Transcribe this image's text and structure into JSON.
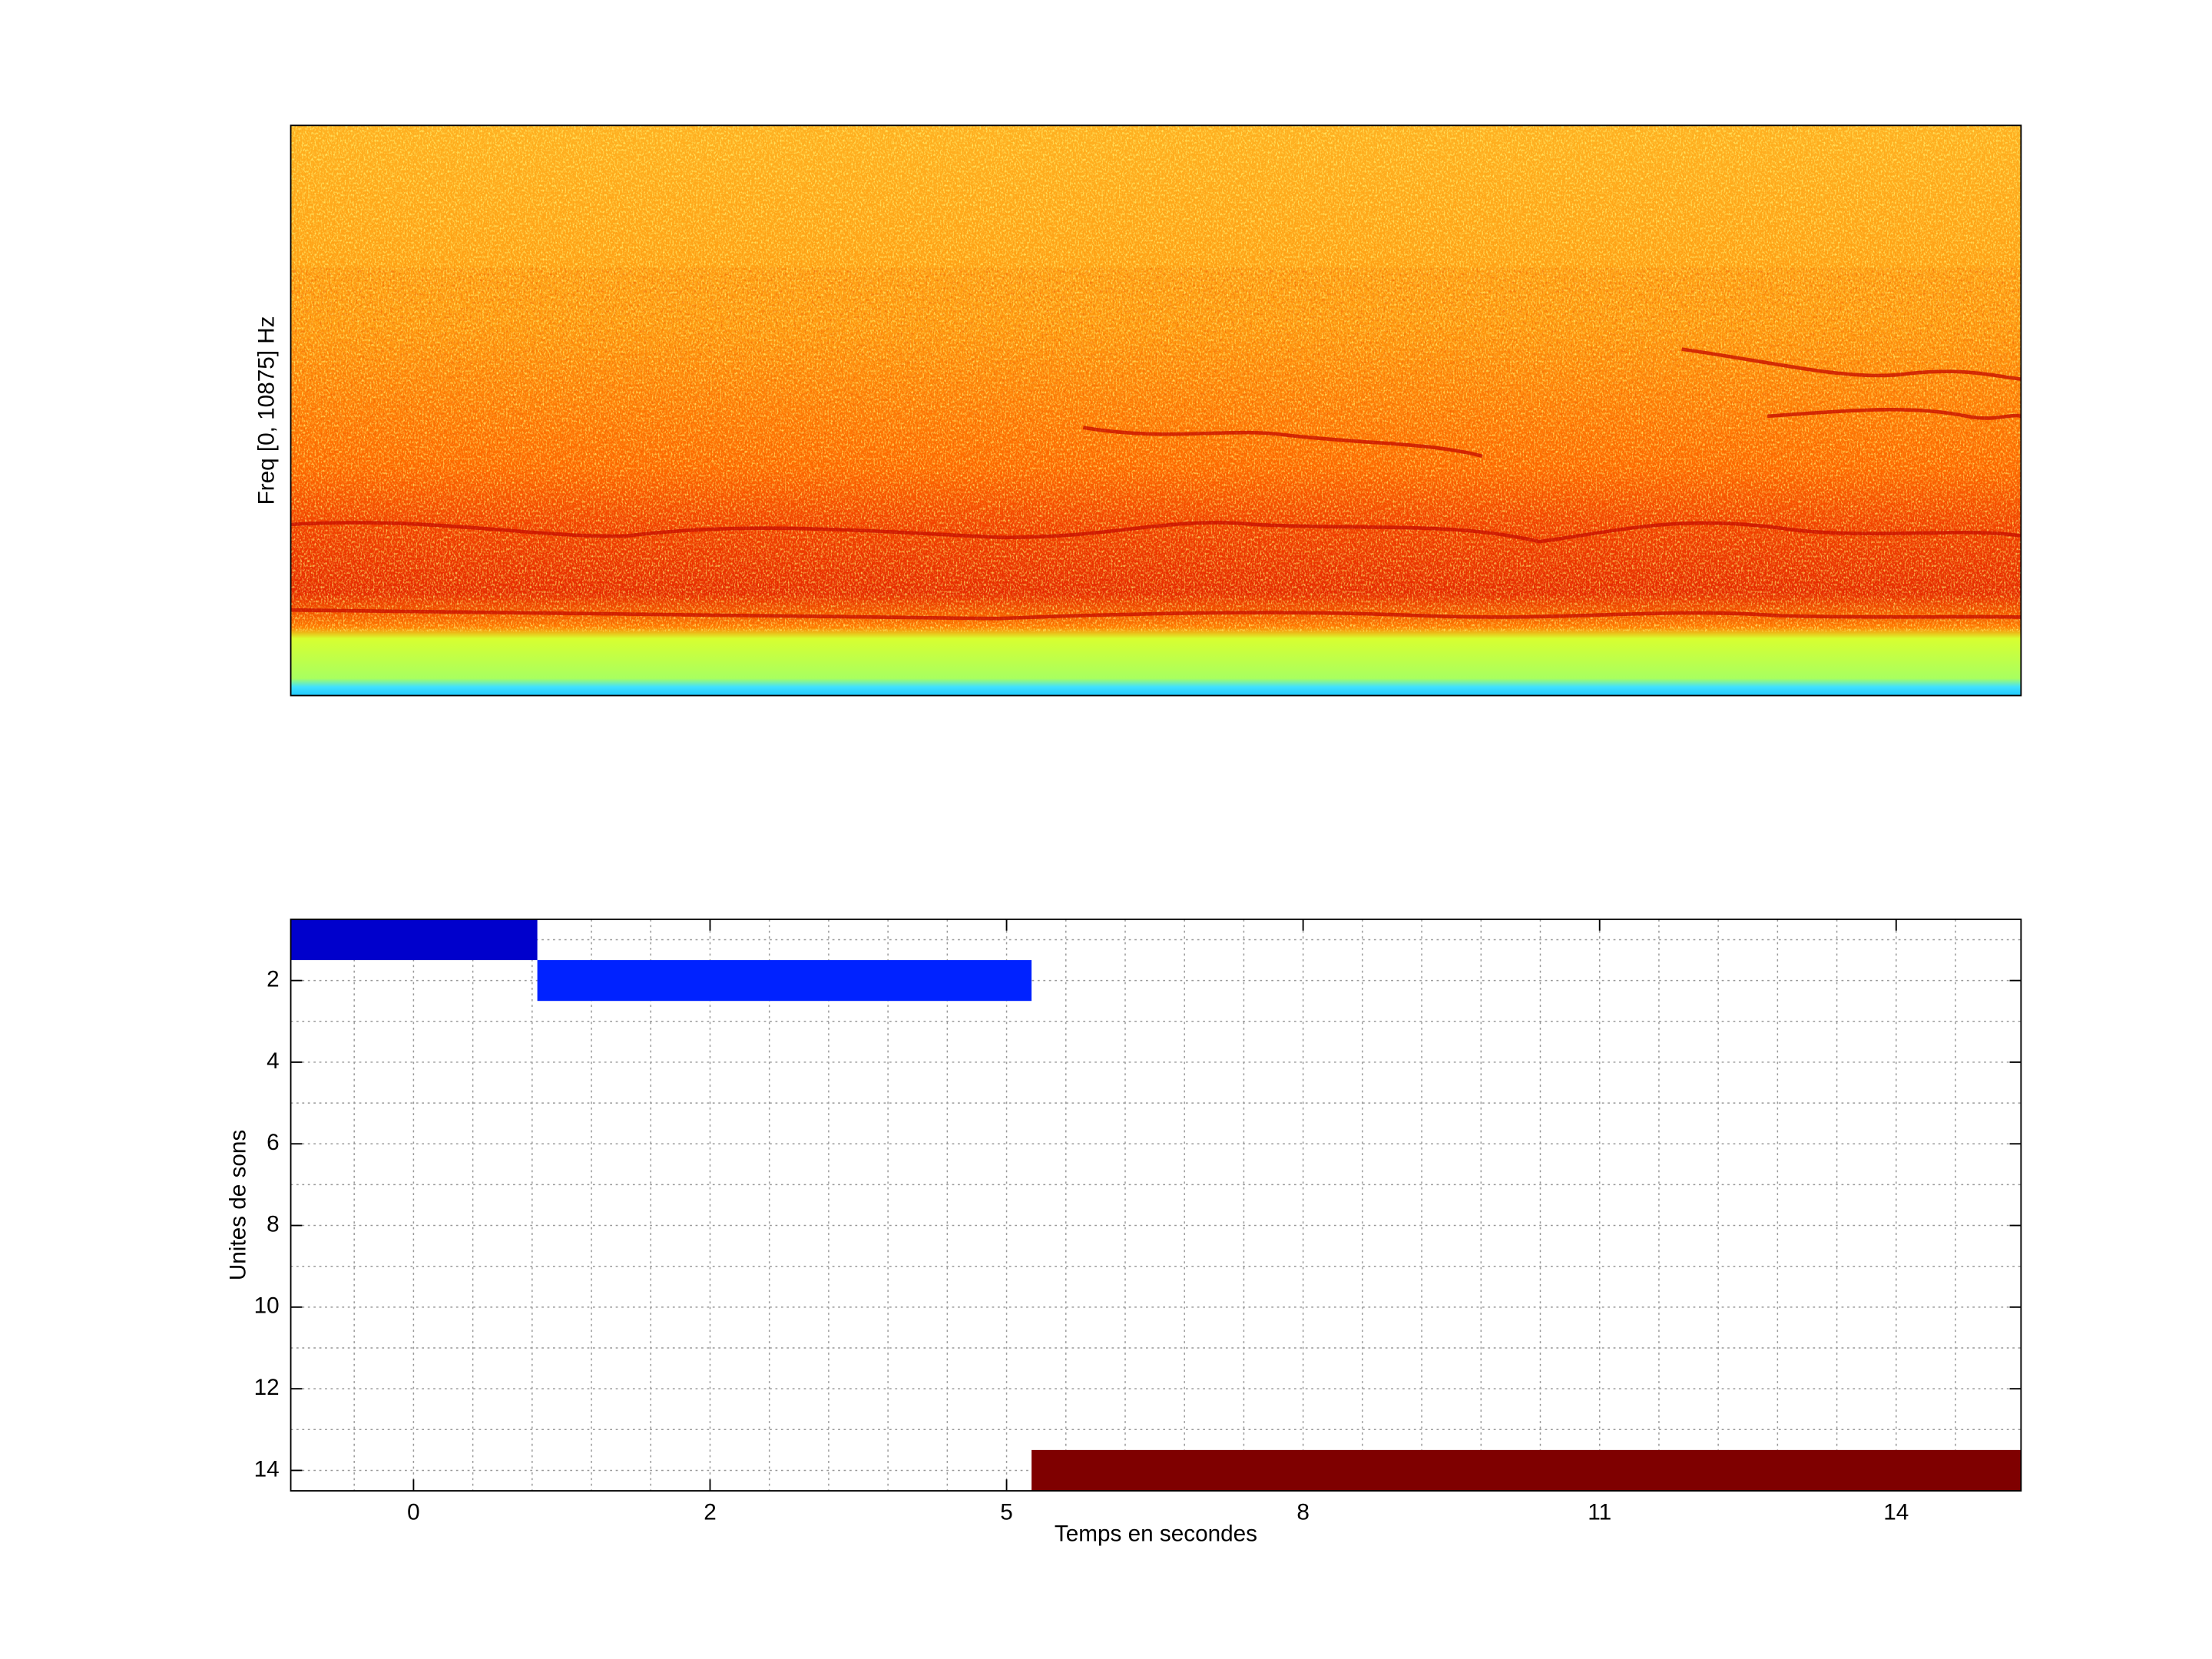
{
  "chart_data": [
    {
      "type": "spectrogram",
      "ylabel": "Freq [0, 10875] Hz"
    },
    {
      "type": "segments",
      "xlabel": "Temps en secondes",
      "ylabel": "Unites de sons",
      "xlim": [
        -1.58,
        15.05
      ],
      "ylim": [
        14.5,
        0.5
      ],
      "xticks": [
        {
          "value": -0.4,
          "label": "0"
        },
        {
          "value": 2.45,
          "label": "2"
        },
        {
          "value": 5.3,
          "label": "5"
        },
        {
          "value": 8.15,
          "label": "8"
        },
        {
          "value": 11.0,
          "label": "11"
        },
        {
          "value": 13.85,
          "label": "14"
        }
      ],
      "xminorticks": [
        -0.97,
        0.17,
        0.74,
        1.31,
        1.88,
        3.02,
        3.59,
        4.16,
        4.73,
        5.87,
        6.44,
        7.01,
        7.58,
        8.72,
        9.29,
        9.86,
        10.43,
        11.57,
        12.14,
        12.71,
        13.28,
        14.42
      ],
      "yticks": [
        2,
        4,
        6,
        8,
        10,
        12,
        14
      ],
      "yminorticks": [
        1,
        3,
        5,
        7,
        9,
        11,
        13
      ],
      "grid": true,
      "segments": [
        {
          "unit": 1,
          "start": -1.58,
          "end": 0.79,
          "color": "#0000cc"
        },
        {
          "unit": 2,
          "start": 0.79,
          "end": 5.54,
          "color": "#0022ff"
        },
        {
          "unit": 14,
          "start": 5.54,
          "end": 15.05,
          "color": "#7f0000"
        }
      ]
    }
  ]
}
